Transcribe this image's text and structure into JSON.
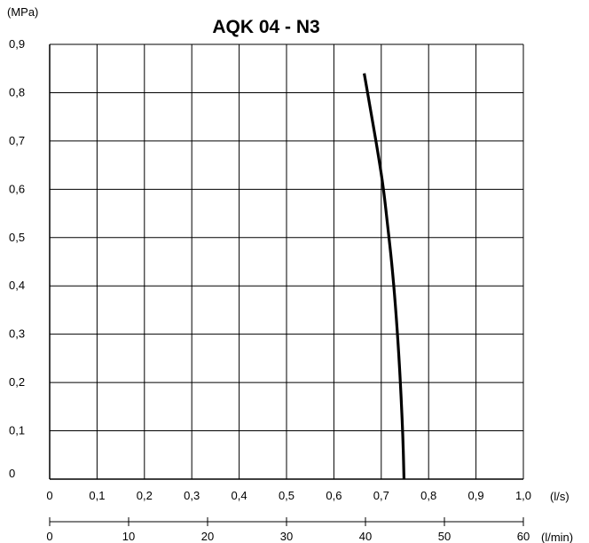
{
  "chart_data": {
    "type": "line",
    "title": "AQK 04 - N3",
    "ylabel": "(MPa)",
    "xlabel": "(l/s)",
    "x2label": "(l/min)",
    "xlim": [
      0,
      1.0
    ],
    "ylim": [
      0,
      0.9
    ],
    "x2lim": [
      0,
      60
    ],
    "grid": true,
    "x_ticks": [
      "0",
      "0,1",
      "0,2",
      "0,3",
      "0,4",
      "0,5",
      "0,6",
      "0,7",
      "0,8",
      "0,9",
      "1,0"
    ],
    "y_ticks": [
      "0",
      "0,1",
      "0,2",
      "0,3",
      "0,4",
      "0,5",
      "0,6",
      "0,7",
      "0,8",
      "0,9"
    ],
    "x2_ticks": [
      "0",
      "10",
      "20",
      "30",
      "40",
      "50",
      "60"
    ],
    "series": [
      {
        "x": [
          0.664,
          0.68,
          0.694,
          0.705,
          0.714,
          0.722,
          0.73,
          0.737,
          0.742,
          0.746,
          0.748
        ],
        "y": [
          0.84,
          0.75,
          0.67,
          0.6,
          0.52,
          0.45,
          0.36,
          0.26,
          0.17,
          0.08,
          0.0
        ]
      }
    ],
    "colors": {
      "line": "#000000",
      "grid": "#000000",
      "background": "#ffffff"
    }
  }
}
